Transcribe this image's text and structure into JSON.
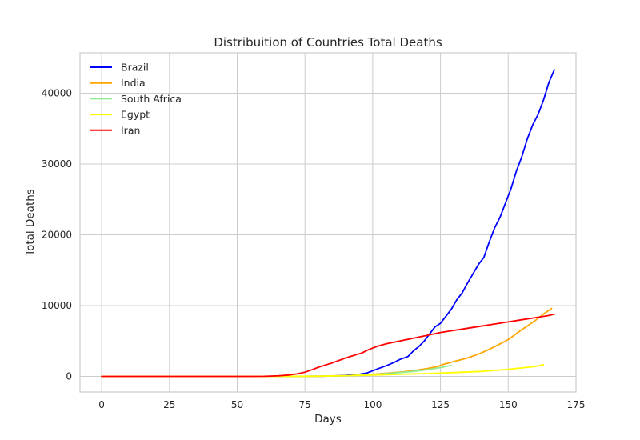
{
  "chart_data": {
    "type": "line",
    "title": "Distribuition of Countries Total Deaths",
    "xlabel": "Days",
    "ylabel": "Total Deaths",
    "xlim": [
      -8,
      175
    ],
    "ylim": [
      -2200,
      45700
    ],
    "xticks": [
      0,
      25,
      50,
      75,
      100,
      125,
      150,
      175
    ],
    "yticks": [
      0,
      10000,
      20000,
      30000,
      40000
    ],
    "grid": true,
    "legend": "top-left",
    "series": [
      {
        "name": "Brazil",
        "color": "#0000ff",
        "x": [
          0,
          30,
          60,
          70,
          80,
          85,
          90,
          95,
          98,
          100,
          102,
          105,
          108,
          110,
          113,
          115,
          117,
          119,
          121,
          123,
          125,
          127,
          129,
          131,
          133,
          135,
          137,
          139,
          141,
          143,
          145,
          147,
          149,
          151,
          153,
          155,
          157,
          159,
          161,
          163,
          165,
          167
        ],
        "y": [
          0,
          0,
          0,
          0,
          20,
          60,
          150,
          300,
          500,
          800,
          1100,
          1500,
          2000,
          2400,
          2800,
          3600,
          4200,
          5000,
          6000,
          7000,
          7500,
          8500,
          9500,
          10800,
          11800,
          13200,
          14500,
          15800,
          16800,
          19000,
          21000,
          22500,
          24500,
          26500,
          29000,
          31000,
          33500,
          35500,
          37000,
          39000,
          41500,
          43300
        ]
      },
      {
        "name": "India",
        "color": "#ffa500",
        "x": [
          0,
          50,
          70,
          80,
          90,
          100,
          105,
          110,
          115,
          120,
          124,
          126,
          130,
          135,
          140,
          145,
          150,
          155,
          160,
          163,
          166
        ],
        "y": [
          0,
          0,
          0,
          20,
          100,
          300,
          450,
          600,
          800,
          1100,
          1400,
          1700,
          2100,
          2600,
          3300,
          4200,
          5200,
          6600,
          7900,
          8800,
          9600
        ]
      },
      {
        "name": "South Africa",
        "color": "#90ee90",
        "x": [
          0,
          60,
          70,
          80,
          90,
          100,
          105,
          110,
          115,
          120,
          125,
          129
        ],
        "y": [
          0,
          0,
          5,
          30,
          100,
          250,
          400,
          550,
          700,
          950,
          1250,
          1550
        ]
      },
      {
        "name": "Egypt",
        "color": "#ffff00",
        "x": [
          0,
          60,
          70,
          80,
          90,
          100,
          110,
          120,
          130,
          140,
          150,
          155,
          160,
          163
        ],
        "y": [
          0,
          0,
          10,
          40,
          100,
          200,
          300,
          400,
          550,
          700,
          1000,
          1200,
          1400,
          1650
        ]
      },
      {
        "name": "Iran",
        "color": "#ff0000",
        "x": [
          0,
          30,
          55,
          60,
          65,
          69,
          72,
          75,
          78,
          80,
          85,
          90,
          95,
          96,
          98,
          100,
          102,
          105,
          110,
          115,
          120,
          125,
          130,
          135,
          140,
          145,
          150,
          155,
          160,
          165,
          167
        ],
        "y": [
          0,
          0,
          0,
          10,
          80,
          200,
          350,
          600,
          1000,
          1300,
          1900,
          2600,
          3200,
          3300,
          3700,
          4000,
          4300,
          4600,
          5000,
          5400,
          5800,
          6200,
          6500,
          6800,
          7100,
          7400,
          7700,
          8000,
          8300,
          8600,
          8800
        ]
      }
    ]
  }
}
